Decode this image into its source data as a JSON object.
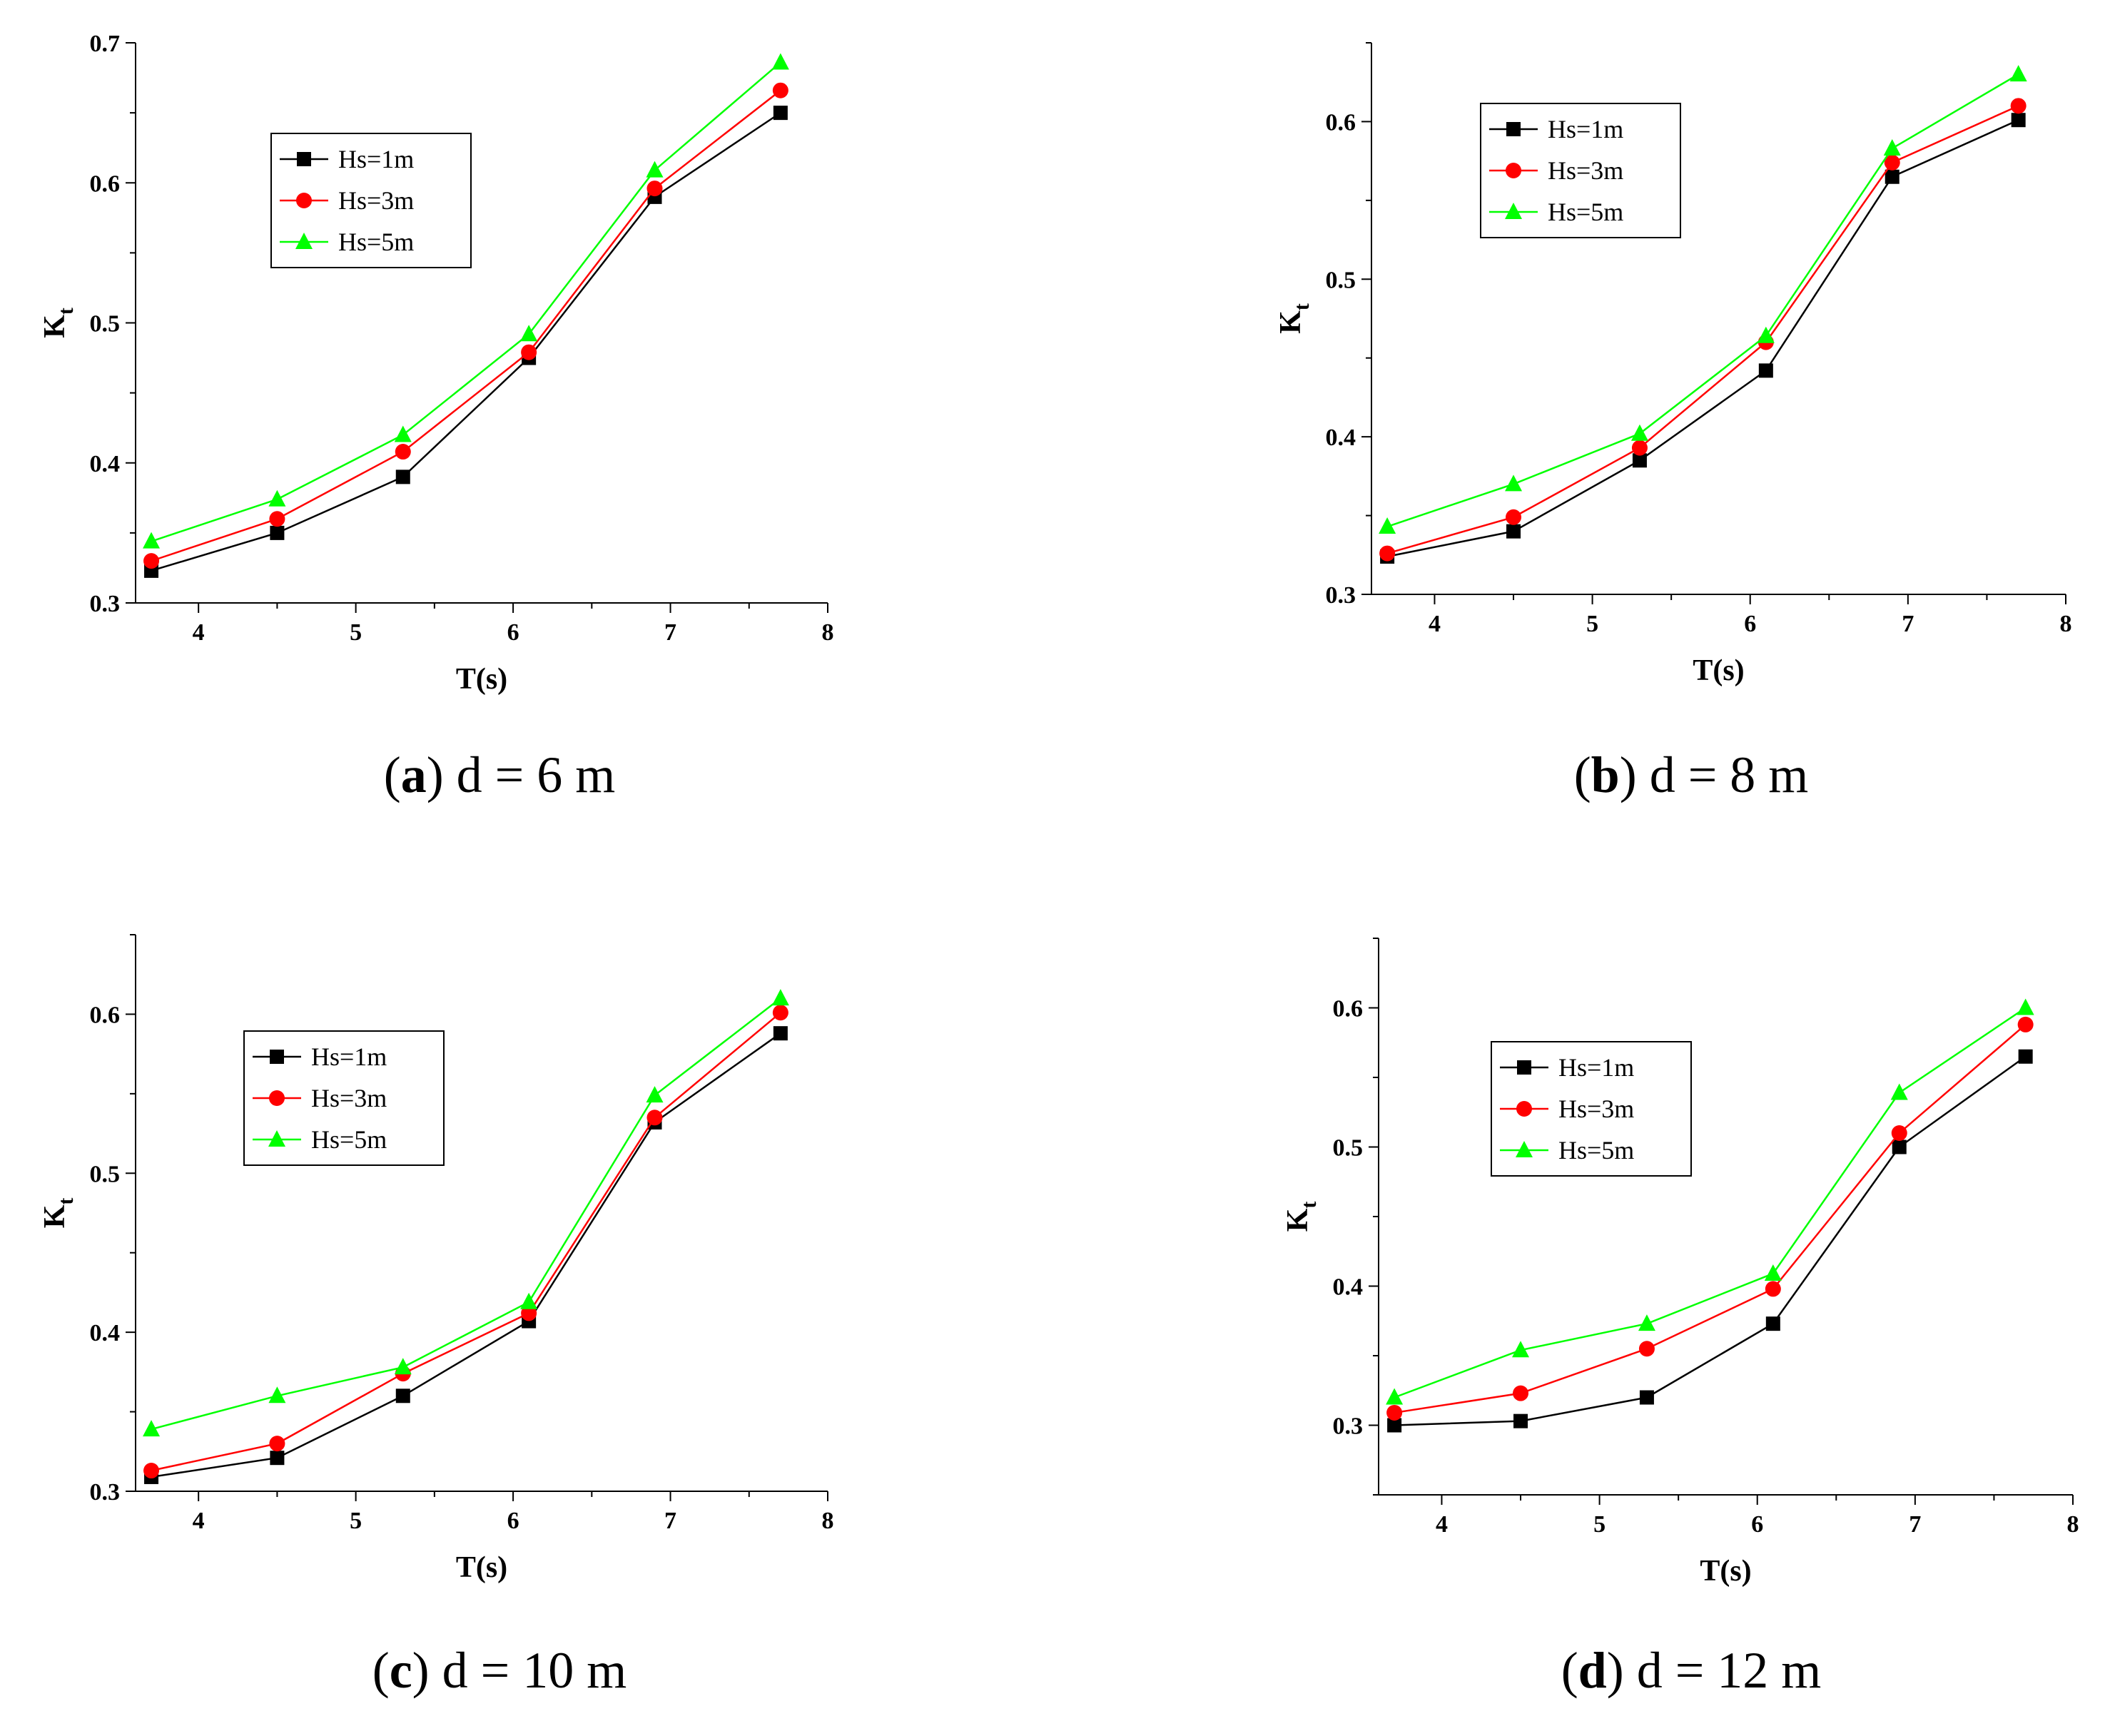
{
  "chart_data": [
    {
      "type": "line",
      "panel_label": "a",
      "caption_rest": "d = 6 m",
      "xlabel": "T(s)",
      "ylabel": "K",
      "ylabel_sub": "t",
      "xlim": [
        3.6,
        8.0
      ],
      "ylim": [
        0.3,
        0.7
      ],
      "xticks": [
        4,
        5,
        6,
        7,
        8
      ],
      "yticks": [
        0.3,
        0.4,
        0.5,
        0.6,
        0.7
      ],
      "ytick_labels": [
        "0.3",
        "0.4",
        "0.5",
        "0.6",
        "0.7"
      ],
      "legend_position": "upper-left",
      "x": [
        3.7,
        4.5,
        5.3,
        6.1,
        6.9,
        7.7
      ],
      "series": [
        {
          "name": "Hs=1m",
          "color": "#000000",
          "marker": "square",
          "values": [
            0.323,
            0.35,
            0.39,
            0.475,
            0.59,
            0.65
          ]
        },
        {
          "name": "Hs=3m",
          "color": "#ff0000",
          "marker": "circle",
          "values": [
            0.33,
            0.36,
            0.408,
            0.479,
            0.596,
            0.666
          ]
        },
        {
          "name": "Hs=5m",
          "color": "#00ff00",
          "marker": "triangle",
          "values": [
            0.344,
            0.374,
            0.42,
            0.492,
            0.609,
            0.686
          ]
        }
      ]
    },
    {
      "type": "line",
      "panel_label": "b",
      "caption_rest": "d = 8 m",
      "xlabel": "T(s)",
      "ylabel": "K",
      "ylabel_sub": "t",
      "xlim": [
        3.6,
        8.0
      ],
      "ylim": [
        0.3,
        0.65
      ],
      "xticks": [
        4,
        5,
        6,
        7,
        8
      ],
      "yticks": [
        0.3,
        0.4,
        0.5,
        0.6
      ],
      "ytick_labels": [
        "0.3",
        "0.4",
        "0.5",
        "0.6"
      ],
      "legend_position": "upper-left",
      "x": [
        3.7,
        4.5,
        5.3,
        6.1,
        6.9,
        7.7
      ],
      "series": [
        {
          "name": "Hs=1m",
          "color": "#000000",
          "marker": "square",
          "values": [
            0.324,
            0.34,
            0.385,
            0.442,
            0.565,
            0.601
          ]
        },
        {
          "name": "Hs=3m",
          "color": "#ff0000",
          "marker": "circle",
          "values": [
            0.326,
            0.349,
            0.393,
            0.46,
            0.574,
            0.61
          ]
        },
        {
          "name": "Hs=5m",
          "color": "#00ff00",
          "marker": "triangle",
          "values": [
            0.343,
            0.37,
            0.402,
            0.464,
            0.583,
            0.63
          ]
        }
      ]
    },
    {
      "type": "line",
      "panel_label": "c",
      "caption_rest": "d = 10 m",
      "xlabel": "T(s)",
      "ylabel": "K",
      "ylabel_sub": "t",
      "xlim": [
        3.6,
        8.0
      ],
      "ylim": [
        0.3,
        0.65
      ],
      "xticks": [
        4,
        5,
        6,
        7,
        8
      ],
      "yticks": [
        0.3,
        0.4,
        0.5,
        0.6
      ],
      "ytick_labels": [
        "0.3",
        "0.4",
        "0.5",
        "0.6"
      ],
      "legend_position": "upper-left",
      "x": [
        3.7,
        4.5,
        5.3,
        6.1,
        6.9,
        7.7
      ],
      "series": [
        {
          "name": "Hs=1m",
          "color": "#000000",
          "marker": "square",
          "values": [
            0.309,
            0.321,
            0.36,
            0.407,
            0.532,
            0.588
          ]
        },
        {
          "name": "Hs=3m",
          "color": "#ff0000",
          "marker": "circle",
          "values": [
            0.313,
            0.33,
            0.374,
            0.412,
            0.535,
            0.601
          ]
        },
        {
          "name": "Hs=5m",
          "color": "#00ff00",
          "marker": "triangle",
          "values": [
            0.339,
            0.36,
            0.378,
            0.419,
            0.549,
            0.61
          ]
        }
      ]
    },
    {
      "type": "line",
      "panel_label": "d",
      "caption_rest": "d = 12 m",
      "xlabel": "T(s)",
      "ylabel": "K",
      "ylabel_sub": "t",
      "xlim": [
        3.6,
        8.0
      ],
      "ylim": [
        0.25,
        0.65
      ],
      "xticks": [
        4,
        5,
        6,
        7,
        8
      ],
      "yticks": [
        0.3,
        0.4,
        0.5,
        0.6
      ],
      "ytick_labels": [
        "0.3",
        "0.4",
        "0.5",
        "0.6"
      ],
      "legend_position": "upper-left",
      "x": [
        3.7,
        4.5,
        5.3,
        6.1,
        6.9,
        7.7
      ],
      "series": [
        {
          "name": "Hs=1m",
          "color": "#000000",
          "marker": "square",
          "values": [
            0.3,
            0.303,
            0.32,
            0.373,
            0.5,
            0.565
          ]
        },
        {
          "name": "Hs=3m",
          "color": "#ff0000",
          "marker": "circle",
          "values": [
            0.309,
            0.323,
            0.355,
            0.398,
            0.51,
            0.588
          ]
        },
        {
          "name": "Hs=5m",
          "color": "#00ff00",
          "marker": "triangle",
          "values": [
            0.32,
            0.354,
            0.373,
            0.409,
            0.539,
            0.6
          ]
        }
      ]
    }
  ]
}
